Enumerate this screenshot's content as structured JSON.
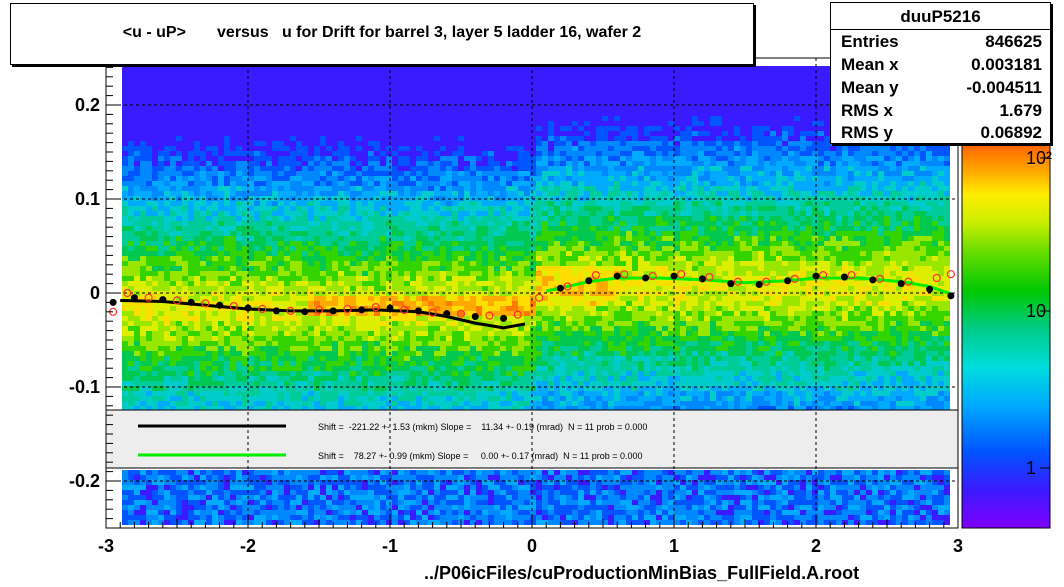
{
  "title": "<u - uP>       versus   u for Drift for barrel 3, layer 5 ladder 16, wafer 2",
  "stats": {
    "name": "duuP5216",
    "rows": [
      {
        "label": "Entries",
        "value": "846625"
      },
      {
        "label": "Mean x",
        "value": "0.003181"
      },
      {
        "label": "Mean y",
        "value": "-0.004511"
      },
      {
        "label": "RMS x",
        "value": "1.679"
      },
      {
        "label": "RMS y",
        "value": "0.06892"
      }
    ]
  },
  "file_label": "../P06icFiles/cuProductionMinBias_FullField.A.root",
  "chart_data": {
    "type": "heatmap",
    "title": "<u - uP>       versus   u for Drift for barrel 3, layer 5 ladder 16, wafer 2",
    "xlim": [
      -3,
      3
    ],
    "ylim": [
      -0.25,
      0.25
    ],
    "x_ticks": [
      "-3",
      "-2",
      "-1",
      "0",
      "1",
      "2",
      "3"
    ],
    "y_ticks": [
      "-0.2",
      "-0.1",
      "0",
      "0.1",
      "0.2"
    ],
    "grid": true,
    "z_scale": "log",
    "z_ticks": [
      "1",
      "10",
      "10²"
    ],
    "colors": {
      "low": "#7f00ff",
      "mid": "#00c800",
      "high": "#ff6400"
    },
    "profile_black": {
      "x": [
        -2.95,
        -2.8,
        -2.6,
        -2.4,
        -2.2,
        -2.0,
        -1.8,
        -1.6,
        -1.4,
        -1.2,
        -1.0,
        -0.8,
        -0.6,
        -0.4,
        -0.2
      ],
      "y": [
        -0.01,
        -0.005,
        -0.007,
        -0.01,
        -0.013,
        -0.016,
        -0.019,
        -0.02,
        -0.019,
        -0.018,
        -0.016,
        -0.019,
        -0.022,
        -0.025,
        -0.027
      ]
    },
    "profile_black_right": {
      "x": [
        0.2,
        0.4,
        0.6,
        0.8,
        1.0,
        1.2,
        1.4,
        1.6,
        1.8,
        2.0,
        2.2,
        2.4,
        2.6,
        2.8,
        2.95
      ],
      "y": [
        0.005,
        0.013,
        0.018,
        0.016,
        0.018,
        0.015,
        0.01,
        0.009,
        0.013,
        0.018,
        0.017,
        0.014,
        0.01,
        0.004,
        -0.003
      ]
    },
    "profile_red": {
      "x": [
        -2.95,
        -2.85,
        -2.7,
        -2.5,
        -2.3,
        -2.1,
        -1.9,
        -1.7,
        -1.5,
        -1.3,
        -1.1,
        -0.9,
        -0.7,
        -0.5,
        -0.3,
        -0.1,
        0.05,
        0.25,
        0.45,
        0.65,
        0.85,
        1.05,
        1.25,
        1.45,
        1.65,
        1.85,
        2.05,
        2.25,
        2.45,
        2.65,
        2.85,
        2.95
      ],
      "y": [
        -0.02,
        0.0,
        -0.005,
        -0.008,
        -0.011,
        -0.014,
        -0.017,
        -0.019,
        -0.018,
        -0.017,
        -0.015,
        -0.018,
        -0.021,
        -0.022,
        -0.024,
        -0.023,
        -0.005,
        0.007,
        0.019,
        0.02,
        0.018,
        0.02,
        0.017,
        0.012,
        0.012,
        0.015,
        0.019,
        0.019,
        0.015,
        0.012,
        0.016,
        0.02
      ]
    },
    "fit_black": {
      "x": [
        -2.9,
        -2.6,
        -2.3,
        -2.0,
        -1.7,
        -1.4,
        -1.1,
        -0.8,
        -0.6,
        -0.4,
        -0.2,
        -0.05
      ],
      "y": [
        -0.008,
        -0.009,
        -0.013,
        -0.017,
        -0.019,
        -0.019,
        -0.018,
        -0.02,
        -0.025,
        -0.032,
        -0.037,
        -0.033
      ]
    },
    "fit_green": {
      "x": [
        0.1,
        0.4,
        0.6,
        0.9,
        1.2,
        1.5,
        1.8,
        2.0,
        2.3,
        2.6,
        2.8,
        2.95
      ],
      "y": [
        0.002,
        0.012,
        0.016,
        0.016,
        0.014,
        0.011,
        0.013,
        0.016,
        0.016,
        0.012,
        0.007,
        -0.001
      ]
    },
    "legend": {
      "entries": [
        {
          "color": "#000000",
          "text": "Shift =  -221.22 +- 1.53 (mkm) Slope =    11.34 +- 0.19 (mrad)  N = 11 prob = 0.000"
        },
        {
          "color": "#00ee00",
          "text": "Shift =    78.27 +- 0.99 (mkm) Slope =     0.00 +- 0.17 (mrad)  N = 11 prob = 0.000"
        }
      ]
    }
  }
}
